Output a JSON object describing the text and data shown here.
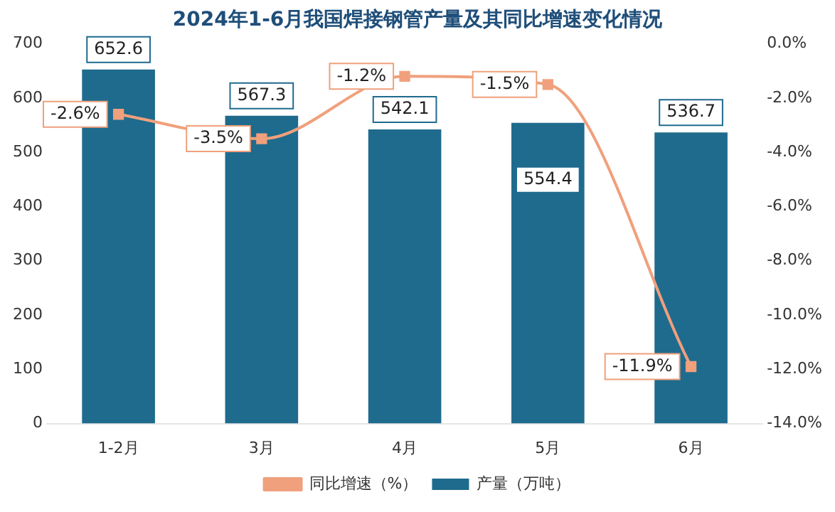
{
  "chart_data": {
    "type": "bar",
    "title": "2024年1-6月我国焊接钢管产量及其同比增速变化情况",
    "categories": [
      "1-2月",
      "3月",
      "4月",
      "5月",
      "6月"
    ],
    "series": [
      {
        "name": "产量（万吨）",
        "color": "#1f6b8e",
        "values": [
          652.6,
          567.3,
          542.1,
          554.4,
          536.7
        ],
        "value_labels": [
          "652.6",
          "567.3",
          "542.1",
          "554.4",
          "536.7"
        ]
      },
      {
        "name": "同比增速（%）",
        "type": "line",
        "axis": "y2",
        "color": "#f0a07c",
        "values": [
          -2.6,
          -3.5,
          -1.2,
          -1.5,
          -11.9
        ],
        "value_labels": [
          "-2.6%",
          "-3.5%",
          "-1.2%",
          "-1.5%",
          "-11.9%"
        ]
      }
    ],
    "ylim": [
      0,
      700
    ],
    "yticks": [
      0,
      100,
      200,
      300,
      400,
      500,
      600,
      700
    ],
    "y2lim": [
      -14,
      0
    ],
    "y2ticks": [
      {
        "value": -14,
        "label": "-14.0%"
      },
      {
        "value": -12,
        "label": "-12.0%"
      },
      {
        "value": -10,
        "label": "-10.0%"
      },
      {
        "value": -8,
        "label": "-8.0%"
      },
      {
        "value": -6,
        "label": "-6.0%"
      },
      {
        "value": -4,
        "label": "-4.0%"
      },
      {
        "value": -2,
        "label": "-2.0%"
      },
      {
        "value": 0,
        "label": "0.0%"
      }
    ],
    "marker": "square",
    "legend": "bottom",
    "grid": false
  }
}
